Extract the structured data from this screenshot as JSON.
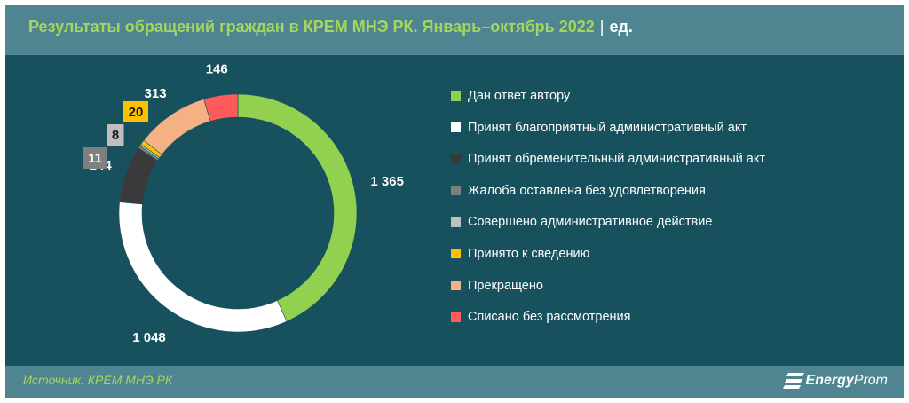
{
  "header": {
    "title": "Результаты обращений граждан в КРЕМ МНЭ РК. Январь–октябрь 2022",
    "separator": "|",
    "unit": "ед."
  },
  "chart_data": {
    "type": "pie",
    "title": "Результаты обращений граждан в КРЕМ МНЭ РК. Январь–октябрь 2022",
    "unit": "ед.",
    "legend_position": "right",
    "slices": [
      {
        "label": "Дан ответ автору",
        "value": 1365,
        "display": "1 365",
        "color": "#92d050"
      },
      {
        "label": "Принят благоприятный административный акт",
        "value": 1048,
        "display": "1 048",
        "color": "#ffffff"
      },
      {
        "label": "Принят обременительный административный акт",
        "value": 244,
        "display": "244",
        "color": "#3a3a3a"
      },
      {
        "label": "Жалоба оставлена без удовлетворения",
        "value": 11,
        "display": "11",
        "color": "#7f7f7f"
      },
      {
        "label": "Совершено административное действие",
        "value": 8,
        "display": "8",
        "color": "#bfbfbf"
      },
      {
        "label": "Принято к сведению",
        "value": 20,
        "display": "20",
        "color": "#ffc000"
      },
      {
        "label": "Прекращено",
        "value": 313,
        "display": "313",
        "color": "#f4b183"
      },
      {
        "label": "Списано без рассмотрения",
        "value": 146,
        "display": "146",
        "color": "#ff5b5b"
      }
    ]
  },
  "footer": {
    "source": "Источник: КРЕМ МНЭ РК",
    "logo_bold": "Energy",
    "logo_rest": "Prom"
  },
  "colors": {
    "background": "#18515e",
    "header_band": "#4f8591",
    "title_accent": "#a4d65e"
  }
}
